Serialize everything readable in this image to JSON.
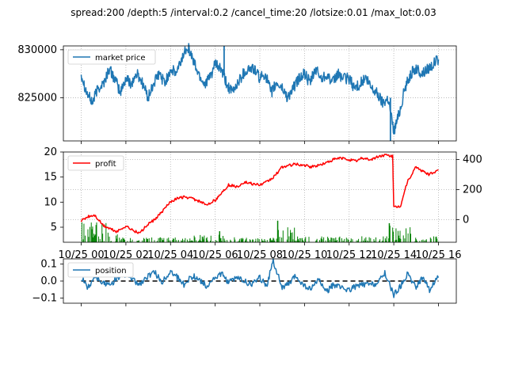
{
  "figure": {
    "title": "spread:200 /depth:5 /interval:0.2 /cancel_time:20 /lotsize:0.01 /max_lot:0.03"
  },
  "colors": {
    "market_price": "#1f77b4",
    "profit": "#ff0000",
    "volume": "#008000",
    "position": "#1f77b4",
    "zero_line": "#000000",
    "grid": "#b0b0b0"
  },
  "chart_data": [
    {
      "type": "line",
      "panel": "top",
      "series": [
        {
          "name": "market price",
          "color": "#1f77b4",
          "x": [
            0,
            0.25,
            0.5,
            0.75,
            1,
            1.25,
            1.5,
            1.75,
            2,
            2.25,
            2.5,
            2.75,
            3,
            3.25,
            3.5,
            3.75,
            4,
            4.25,
            4.5,
            4.75,
            5,
            5.25,
            5.5,
            5.75,
            6,
            6.25,
            6.5,
            6.75,
            7,
            7.25,
            7.5,
            7.75,
            8,
            8.25,
            8.5,
            8.75,
            9,
            9.25,
            9.5,
            9.75,
            10,
            10.25,
            10.5,
            10.75,
            11,
            11.25,
            11.5,
            11.75,
            12,
            12.25,
            12.5,
            12.75,
            13,
            13.25,
            13.5,
            13.75,
            14,
            14.25,
            14.5,
            14.75,
            15,
            15.25,
            15.5,
            15.75,
            16
          ],
          "y": [
            827500,
            825500,
            824500,
            826000,
            826500,
            828000,
            827000,
            825500,
            827000,
            826500,
            827500,
            826500,
            825000,
            826500,
            827500,
            826500,
            828000,
            827500,
            829000,
            830500,
            829000,
            827500,
            826500,
            827000,
            828500,
            828000,
            826500,
            825500,
            826500,
            827500,
            828000,
            828000,
            827000,
            827500,
            825500,
            826500,
            826000,
            825000,
            826000,
            827000,
            827500,
            826500,
            828000,
            827000,
            827500,
            826500,
            827500,
            827000,
            827000,
            826000,
            826500,
            827000,
            826000,
            825500,
            824500,
            825000,
            821500,
            823500,
            826000,
            827500,
            828000,
            827500,
            828000,
            828500,
            829000
          ]
        }
      ],
      "spikes": [
        {
          "x": 6.4,
          "y": 830400,
          "type": "up"
        },
        {
          "x": 13.85,
          "y": 820500,
          "type": "down"
        }
      ],
      "xlim": [
        -0.8,
        16.8
      ],
      "ylim": [
        820500,
        830400
      ],
      "yticks": [
        825000,
        830000
      ],
      "ytick_labels": [
        "825000",
        "830000"
      ],
      "grid": true,
      "legend": "upper left"
    },
    {
      "type": "line",
      "panel": "middle",
      "series": [
        {
          "name": "profit",
          "color": "#ff0000",
          "axis": "right",
          "x": [
            0,
            0.3,
            0.6,
            1,
            1.3,
            1.6,
            2,
            2.3,
            2.6,
            3,
            3.3,
            3.6,
            4,
            4.3,
            4.6,
            5,
            5.3,
            5.6,
            6,
            6.3,
            6.6,
            7,
            7.3,
            7.6,
            8,
            8.3,
            8.6,
            9,
            9.3,
            9.6,
            10,
            10.3,
            10.6,
            11,
            11.3,
            11.6,
            12,
            12.3,
            12.6,
            13,
            13.3,
            13.6,
            13.95,
            14.0,
            14.3,
            14.6,
            15,
            15.3,
            15.6,
            16
          ],
          "y": [
            -10,
            20,
            30,
            -40,
            -60,
            -80,
            -40,
            -70,
            -90,
            -30,
            0,
            50,
            120,
            140,
            150,
            140,
            120,
            100,
            130,
            180,
            230,
            220,
            250,
            240,
            230,
            250,
            280,
            350,
            360,
            370,
            360,
            350,
            360,
            380,
            400,
            410,
            400,
            390,
            410,
            400,
            420,
            430,
            420,
            80,
            90,
            250,
            350,
            320,
            300,
            330
          ]
        },
        {
          "name": "",
          "color": "#008000",
          "axis": "left",
          "type": "volume_bars",
          "note_visual": "dense green bars at bottom of panel"
        }
      ],
      "xlim": [
        -0.8,
        16.8
      ],
      "ylim_left": [
        2,
        20
      ],
      "yticks_left": [
        5,
        10,
        15,
        20
      ],
      "ylim_right": [
        -150,
        450
      ],
      "yticks_right": [
        0,
        200,
        400
      ],
      "xtick_labels": [
        "10/25 00",
        "10/25 02",
        "10/25 04",
        "10/25 06",
        "10/25 08",
        "10/25 10",
        "10/25 12",
        "10/25 14",
        "10/25 16"
      ],
      "grid": true,
      "legend": "upper left"
    },
    {
      "type": "line",
      "panel": "bottom",
      "series": [
        {
          "name": "position",
          "color": "#1f77b4",
          "x": [
            0,
            0.3,
            0.6,
            1,
            1.3,
            1.6,
            2,
            2.3,
            2.6,
            3,
            3.3,
            3.6,
            4,
            4.3,
            4.6,
            5,
            5.3,
            5.6,
            6,
            6.3,
            6.6,
            7,
            7.3,
            7.6,
            8,
            8.3,
            8.6,
            9,
            9.3,
            9.6,
            10,
            10.3,
            10.6,
            11,
            11.3,
            11.6,
            12,
            12.3,
            12.6,
            13,
            13.3,
            13.6,
            14,
            14.3,
            14.6,
            15,
            15.3,
            15.6,
            16
          ],
          "y": [
            0.02,
            -0.04,
            0.03,
            -0.01,
            -0.03,
            0.02,
            0.04,
            0.01,
            -0.02,
            0.03,
            0.05,
            -0.01,
            0.06,
            0.02,
            -0.02,
            0.03,
            0.01,
            -0.03,
            0.02,
            0.04,
            -0.01,
            0.02,
            0.0,
            -0.02,
            0.02,
            -0.03,
            0.12,
            -0.04,
            -0.02,
            0.03,
            -0.03,
            -0.05,
            0.01,
            -0.06,
            -0.02,
            -0.04,
            -0.05,
            -0.03,
            -0.02,
            -0.02,
            -0.01,
            0.05,
            -0.08,
            -0.03,
            0.04,
            -0.04,
            0.03,
            -0.05,
            0.02
          ]
        }
      ],
      "zero_line": true,
      "xlim": [
        -0.8,
        16.8
      ],
      "ylim": [
        -0.13,
        0.13
      ],
      "yticks": [
        -0.1,
        0.0,
        0.1
      ],
      "ytick_labels": [
        "−0.1",
        "0.0",
        "0.1"
      ],
      "grid": false,
      "legend": "upper left"
    }
  ]
}
